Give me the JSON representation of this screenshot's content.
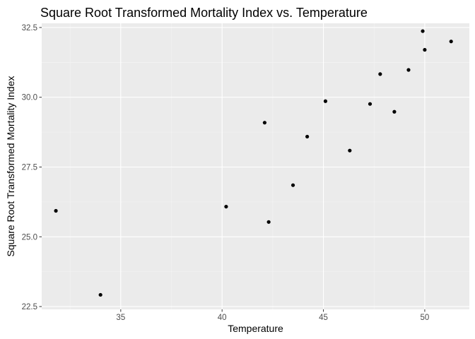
{
  "chart_data": {
    "type": "scatter",
    "title": "Square Root Transformed Mortality Index vs. Temperature",
    "xlabel": "Temperature",
    "ylabel": "Square Root Transformed Mortality Index",
    "xlim": [
      31.1,
      52.2
    ],
    "ylim": [
      22.4,
      32.65
    ],
    "x_ticks": [
      35,
      40,
      45,
      50
    ],
    "y_ticks": [
      22.5,
      25.0,
      27.5,
      30.0,
      32.5
    ],
    "x_tick_labels": [
      "35",
      "40",
      "45",
      "50"
    ],
    "y_tick_labels": [
      "22.5",
      "25.0",
      "27.5",
      "30.0",
      "32.5"
    ],
    "grid": true,
    "colors": {
      "panel_background": "#ebebeb",
      "grid_major": "#ffffff",
      "grid_minor": "#f5f5f5",
      "point": "#000000"
    },
    "points": [
      {
        "x": 31.8,
        "y": 25.93
      },
      {
        "x": 34.0,
        "y": 22.92
      },
      {
        "x": 40.2,
        "y": 26.08
      },
      {
        "x": 42.1,
        "y": 29.09
      },
      {
        "x": 42.3,
        "y": 25.53
      },
      {
        "x": 43.5,
        "y": 26.85
      },
      {
        "x": 44.2,
        "y": 28.59
      },
      {
        "x": 45.1,
        "y": 29.86
      },
      {
        "x": 46.3,
        "y": 28.09
      },
      {
        "x": 47.3,
        "y": 29.76
      },
      {
        "x": 47.8,
        "y": 30.83
      },
      {
        "x": 48.5,
        "y": 29.48
      },
      {
        "x": 49.2,
        "y": 30.98
      },
      {
        "x": 49.9,
        "y": 32.37
      },
      {
        "x": 50.0,
        "y": 31.7
      },
      {
        "x": 51.3,
        "y": 32.0
      }
    ]
  }
}
